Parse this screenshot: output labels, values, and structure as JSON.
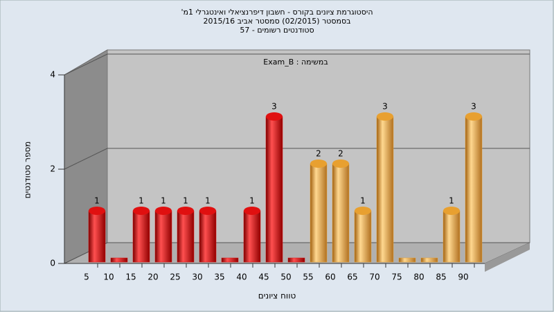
{
  "chart_data": {
    "type": "bar",
    "title": [
      "היסטוגרמת ציונים בקורס - חשבון דיפרנציאלי ואינטגרלי 1מ'",
      "בסמסטר (02/2015) סמסטר אביב 2015/16",
      "סטודנטים רשומים - 57"
    ],
    "subtitle": "במשימה : Exam_B",
    "x_label": "טווח ציונים",
    "y_label": "מספר סטודנטים",
    "categories": [
      "5",
      "10",
      "15",
      "20",
      "25",
      "30",
      "35",
      "40",
      "45",
      "50",
      "55",
      "60",
      "65",
      "70",
      "75",
      "80",
      "85",
      "90"
    ],
    "values": [
      1,
      0,
      1,
      1,
      1,
      1,
      0,
      1,
      3,
      0,
      2,
      2,
      1,
      3,
      0,
      0,
      1,
      3
    ],
    "colors": [
      "#e01010",
      "#e01010",
      "#e01010",
      "#e01010",
      "#e01010",
      "#e01010",
      "#e01010",
      "#e01010",
      "#e01010",
      "#e01010",
      "#e8a030",
      "#e8a030",
      "#e8a030",
      "#e8a030",
      "#e8a030",
      "#e8a030",
      "#e8a030",
      "#e8a030"
    ],
    "ylim": [
      0,
      4
    ],
    "yticks": [
      0,
      2,
      4
    ],
    "grid": true
  }
}
